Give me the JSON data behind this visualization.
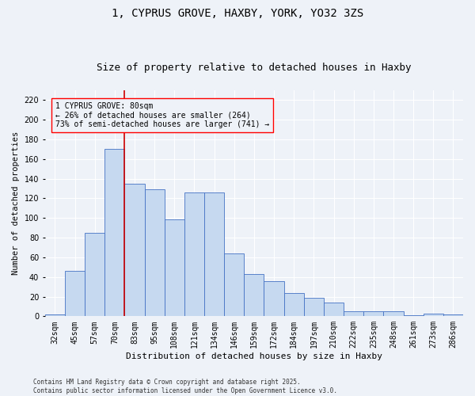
{
  "title": "1, CYPRUS GROVE, HAXBY, YORK, YO32 3ZS",
  "subtitle": "Size of property relative to detached houses in Haxby",
  "xlabel": "Distribution of detached houses by size in Haxby",
  "ylabel": "Number of detached properties",
  "categories": [
    "32sqm",
    "45sqm",
    "57sqm",
    "70sqm",
    "83sqm",
    "95sqm",
    "108sqm",
    "121sqm",
    "134sqm",
    "146sqm",
    "159sqm",
    "172sqm",
    "184sqm",
    "197sqm",
    "210sqm",
    "222sqm",
    "235sqm",
    "248sqm",
    "261sqm",
    "273sqm",
    "286sqm"
  ],
  "values": [
    2,
    46,
    85,
    170,
    135,
    129,
    99,
    126,
    126,
    64,
    43,
    36,
    24,
    19,
    14,
    5,
    5,
    5,
    1,
    3,
    2
  ],
  "bar_color": "#c6d9f0",
  "bar_edge_color": "#4472c4",
  "vline_x": 3.5,
  "vline_color": "#cc0000",
  "annotation_text": "1 CYPRUS GROVE: 80sqm\n← 26% of detached houses are smaller (264)\n73% of semi-detached houses are larger (741) →",
  "ylim": [
    0,
    230
  ],
  "yticks": [
    0,
    20,
    40,
    60,
    80,
    100,
    120,
    140,
    160,
    180,
    200,
    220
  ],
  "footer": "Contains HM Land Registry data © Crown copyright and database right 2025.\nContains public sector information licensed under the Open Government Licence v3.0.",
  "background_color": "#eef2f8",
  "grid_color": "#ffffff",
  "title_fontsize": 10,
  "subtitle_fontsize": 9,
  "tick_fontsize": 7,
  "ylabel_fontsize": 7.5,
  "xlabel_fontsize": 8,
  "annotation_fontsize": 7,
  "footer_fontsize": 5.5
}
